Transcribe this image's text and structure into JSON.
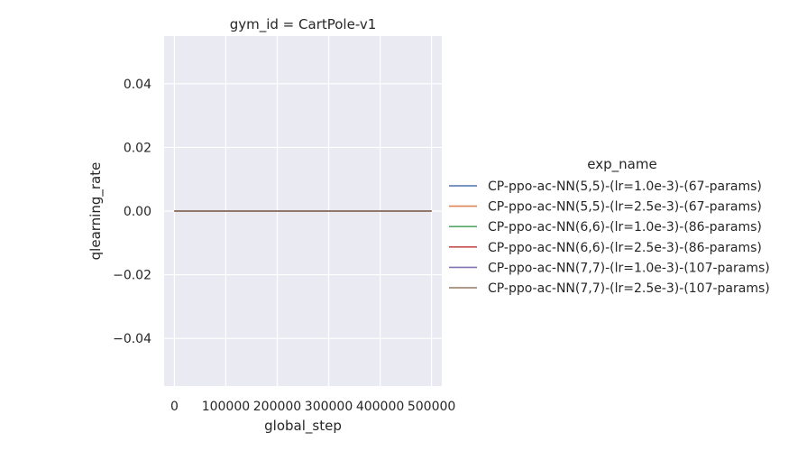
{
  "chart_data": {
    "type": "line",
    "title": "gym_id = CartPole-v1",
    "xlabel": "global_step",
    "ylabel": "qlearning_rate",
    "xlim": [
      -20000,
      520000
    ],
    "ylim": [
      -0.055,
      0.055
    ],
    "x_ticks": [
      0,
      100000,
      200000,
      300000,
      400000,
      500000
    ],
    "x_tick_labels": [
      "0",
      "100000",
      "200000",
      "300000",
      "400000",
      "500000"
    ],
    "y_ticks": [
      -0.04,
      -0.02,
      0.0,
      0.02,
      0.04
    ],
    "y_tick_labels": [
      "−0.04",
      "−0.02",
      "0.00",
      "0.02",
      "0.04"
    ],
    "grid": true,
    "legend_title": "exp_name",
    "legend_position": "right",
    "x": [
      0,
      500000
    ],
    "series": [
      {
        "name": "CP-ppo-ac-NN(5,5)-(lr=1.0e-3)-(67-params)",
        "color": "#4c72b0",
        "values": [
          0,
          0
        ]
      },
      {
        "name": "CP-ppo-ac-NN(5,5)-(lr=2.5e-3)-(67-params)",
        "color": "#dd8452",
        "values": [
          0,
          0
        ]
      },
      {
        "name": "CP-ppo-ac-NN(6,6)-(lr=1.0e-3)-(86-params)",
        "color": "#55a868",
        "values": [
          0,
          0
        ]
      },
      {
        "name": "CP-ppo-ac-NN(6,6)-(lr=2.5e-3)-(86-params)",
        "color": "#c44e52",
        "values": [
          0,
          0
        ]
      },
      {
        "name": "CP-ppo-ac-NN(7,7)-(lr=1.0e-3)-(107-params)",
        "color": "#8172b3",
        "values": [
          0,
          0
        ]
      },
      {
        "name": "CP-ppo-ac-NN(7,7)-(lr=2.5e-3)-(107-params)",
        "color": "#937860",
        "values": [
          0,
          0
        ]
      }
    ]
  }
}
